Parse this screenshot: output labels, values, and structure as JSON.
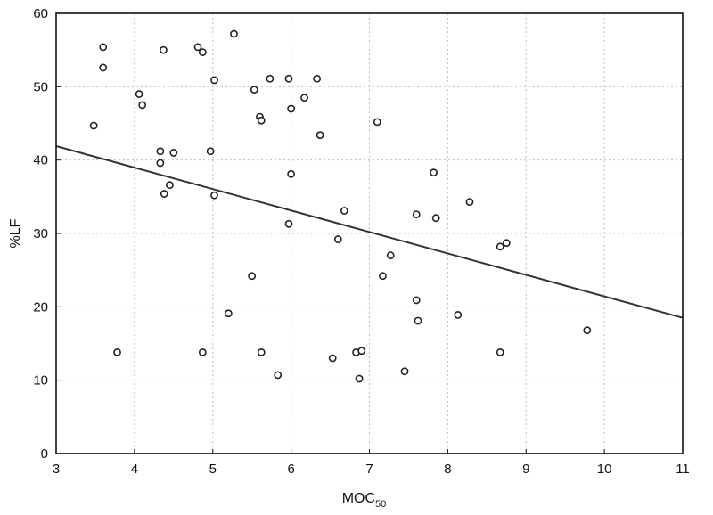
{
  "chart_data": {
    "type": "scatter",
    "title": "",
    "xlabel": "MOC",
    "xlabel_sub": "50",
    "ylabel": "%LF",
    "xlim": [
      3,
      11
    ],
    "ylim": [
      0,
      60
    ],
    "x_ticks": [
      "3",
      "4",
      "5",
      "6",
      "7",
      "8",
      "9",
      "10",
      "11"
    ],
    "y_ticks": [
      "0",
      "10",
      "20",
      "30",
      "40",
      "50",
      "60"
    ],
    "grid": true,
    "legend": "none",
    "points": [
      {
        "x": 3.48,
        "y": 44.7
      },
      {
        "x": 3.6,
        "y": 55.4
      },
      {
        "x": 3.6,
        "y": 52.6
      },
      {
        "x": 3.78,
        "y": 13.8
      },
      {
        "x": 4.06,
        "y": 49.0
      },
      {
        "x": 4.1,
        "y": 47.5
      },
      {
        "x": 4.33,
        "y": 41.2
      },
      {
        "x": 4.33,
        "y": 39.6
      },
      {
        "x": 4.37,
        "y": 55.0
      },
      {
        "x": 4.38,
        "y": 35.4
      },
      {
        "x": 4.45,
        "y": 36.6
      },
      {
        "x": 4.5,
        "y": 41.0
      },
      {
        "x": 4.81,
        "y": 55.4
      },
      {
        "x": 4.87,
        "y": 54.7
      },
      {
        "x": 4.87,
        "y": 13.8
      },
      {
        "x": 4.97,
        "y": 41.2
      },
      {
        "x": 5.02,
        "y": 50.9
      },
      {
        "x": 5.02,
        "y": 35.2
      },
      {
        "x": 5.2,
        "y": 19.1
      },
      {
        "x": 5.27,
        "y": 57.2
      },
      {
        "x": 5.5,
        "y": 24.2
      },
      {
        "x": 5.53,
        "y": 49.6
      },
      {
        "x": 5.6,
        "y": 45.9
      },
      {
        "x": 5.62,
        "y": 45.4
      },
      {
        "x": 5.62,
        "y": 13.8
      },
      {
        "x": 5.73,
        "y": 51.1
      },
      {
        "x": 5.83,
        "y": 10.7
      },
      {
        "x": 5.97,
        "y": 51.1
      },
      {
        "x": 5.97,
        "y": 31.3
      },
      {
        "x": 6.0,
        "y": 47.0
      },
      {
        "x": 6.0,
        "y": 38.1
      },
      {
        "x": 6.17,
        "y": 48.5
      },
      {
        "x": 6.33,
        "y": 51.1
      },
      {
        "x": 6.37,
        "y": 43.4
      },
      {
        "x": 6.53,
        "y": 13.0
      },
      {
        "x": 6.6,
        "y": 29.2
      },
      {
        "x": 6.68,
        "y": 33.1
      },
      {
        "x": 6.83,
        "y": 13.8
      },
      {
        "x": 6.87,
        "y": 10.2
      },
      {
        "x": 6.9,
        "y": 14.0
      },
      {
        "x": 7.1,
        "y": 45.2
      },
      {
        "x": 7.17,
        "y": 24.2
      },
      {
        "x": 7.27,
        "y": 27.0
      },
      {
        "x": 7.45,
        "y": 11.2
      },
      {
        "x": 7.6,
        "y": 32.6
      },
      {
        "x": 7.6,
        "y": 20.9
      },
      {
        "x": 7.62,
        "y": 18.1
      },
      {
        "x": 7.82,
        "y": 38.3
      },
      {
        "x": 7.85,
        "y": 32.1
      },
      {
        "x": 8.13,
        "y": 18.9
      },
      {
        "x": 8.28,
        "y": 34.3
      },
      {
        "x": 8.67,
        "y": 28.2
      },
      {
        "x": 8.67,
        "y": 13.8
      },
      {
        "x": 8.75,
        "y": 28.7
      },
      {
        "x": 9.78,
        "y": 16.8
      }
    ],
    "trendline": {
      "x": [
        3,
        11
      ],
      "y": [
        41.9,
        18.5
      ]
    }
  }
}
